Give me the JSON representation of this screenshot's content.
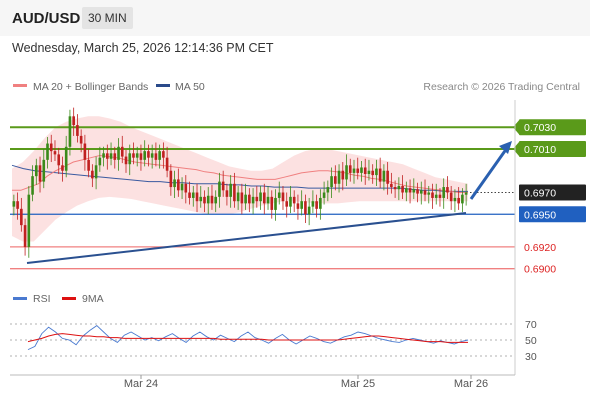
{
  "header": {
    "pair": "AUD/USD",
    "timeframe": "30 MIN",
    "datetime": "Wednesday, March 25, 2026 12:14:36 PM CET"
  },
  "legend": {
    "bollinger": "MA 20 + Bollinger Bands",
    "ma50": "MA 50",
    "credit": "Research © 2026 Trading Central"
  },
  "colors": {
    "resistance": "#5a9a1a",
    "pivot": "#2060c0",
    "support": "#f08080",
    "support_text": "#dd2222",
    "candle_up": "#3a8a1a",
    "candle_down": "#c02020",
    "bands": "#fbdcdc",
    "ma20": "#f08080",
    "ma50": "#3a5aa0",
    "rsi": "#4a7ad0",
    "rsi_ma": "#dd1111"
  },
  "chart_data": [
    {
      "type": "candlestick",
      "title": "AUD/USD",
      "ylim": [
        0.6885,
        0.7055
      ],
      "x_labels": [
        "Mar 24",
        "Mar 25",
        "Mar 26"
      ],
      "price_levels": [
        {
          "label": "0.7030",
          "value": 0.703,
          "kind": "resistance"
        },
        {
          "label": "0.7010",
          "value": 0.701,
          "kind": "resistance"
        },
        {
          "label": "0.6970",
          "value": 0.697,
          "kind": "last"
        },
        {
          "label": "0.6950",
          "value": 0.695,
          "kind": "pivot"
        },
        {
          "label": "0.6920",
          "value": 0.692,
          "kind": "support"
        },
        {
          "label": "0.6900",
          "value": 0.69,
          "kind": "support"
        }
      ],
      "closes": [
        0.6962,
        0.6955,
        0.694,
        0.692,
        0.6968,
        0.6985,
        0.6995,
        0.698,
        0.7,
        0.7015,
        0.7008,
        0.7005,
        0.6995,
        0.699,
        0.7012,
        0.704,
        0.7032,
        0.7022,
        0.7015,
        0.7,
        0.699,
        0.6983,
        0.6995,
        0.7002,
        0.7006,
        0.7001,
        0.7006,
        0.7,
        0.7012,
        0.7003,
        0.6996,
        0.7006,
        0.7002,
        0.7006,
        0.7,
        0.7008,
        0.7002,
        0.7006,
        0.7,
        0.7008,
        0.7002,
        0.699,
        0.6975,
        0.6982,
        0.6972,
        0.6978,
        0.697,
        0.6965,
        0.697,
        0.6962,
        0.6966,
        0.696,
        0.6967,
        0.696,
        0.6966,
        0.698,
        0.6972,
        0.6966,
        0.6978,
        0.6962,
        0.697,
        0.696,
        0.6968,
        0.696,
        0.6966,
        0.6962,
        0.697,
        0.696,
        0.6966,
        0.6954,
        0.6965,
        0.697,
        0.6962,
        0.6957,
        0.6966,
        0.696,
        0.6955,
        0.6962,
        0.695,
        0.6957,
        0.6962,
        0.6955,
        0.6965,
        0.697,
        0.6975,
        0.6985,
        0.6978,
        0.699,
        0.6982,
        0.6995,
        0.6988,
        0.6992,
        0.6988,
        0.6993,
        0.6987,
        0.699,
        0.6986,
        0.6992,
        0.698,
        0.699,
        0.6978,
        0.6975,
        0.6973,
        0.6976,
        0.697,
        0.6974,
        0.697,
        0.6973,
        0.6969,
        0.6972,
        0.6968,
        0.697,
        0.6965,
        0.6968,
        0.6965,
        0.6975,
        0.697,
        0.6962,
        0.6965,
        0.696,
        0.6968,
        0.697
      ],
      "ma20": [
        0.6972,
        0.6972,
        0.6975,
        0.6978,
        0.6985,
        0.699,
        0.6994,
        0.6998,
        0.7,
        0.7002,
        0.7004,
        0.7003,
        0.7002,
        0.7,
        0.6998,
        0.6997,
        0.6996,
        0.6995,
        0.6994,
        0.6993,
        0.6992,
        0.6991,
        0.6989,
        0.6988,
        0.6986,
        0.6985,
        0.6984,
        0.6983,
        0.6982,
        0.6982,
        0.6982,
        0.6984,
        0.6986,
        0.6988,
        0.6989,
        0.699,
        0.699,
        0.6989,
        0.6988,
        0.6986,
        0.6985,
        0.6983,
        0.6982,
        0.698,
        0.6978,
        0.6976,
        0.6975,
        0.6974,
        0.6973,
        0.6972,
        0.6971,
        0.697,
        0.697
      ],
      "bb_upper": [
        0.6992,
        0.6998,
        0.7008,
        0.702,
        0.703,
        0.7035,
        0.7038,
        0.704,
        0.704,
        0.7038,
        0.7035,
        0.703,
        0.7026,
        0.7022,
        0.7018,
        0.7014,
        0.701,
        0.7006,
        0.7002,
        0.6998,
        0.6994,
        0.6992,
        0.699,
        0.699,
        0.6992,
        0.6998,
        0.7004,
        0.7008,
        0.701,
        0.701,
        0.7008,
        0.7006,
        0.7004,
        0.7002,
        0.7,
        0.6998,
        0.6996,
        0.6992,
        0.6988,
        0.6984,
        0.6982,
        0.698,
        0.6978
      ],
      "bb_lower": [
        0.693,
        0.6925,
        0.6925,
        0.6935,
        0.6945,
        0.6952,
        0.6958,
        0.6962,
        0.6965,
        0.6966,
        0.6965,
        0.6964,
        0.6962,
        0.696,
        0.6958,
        0.6956,
        0.6954,
        0.6952,
        0.695,
        0.695,
        0.695,
        0.6952,
        0.6955,
        0.6958,
        0.696,
        0.6962,
        0.6962,
        0.6961,
        0.696,
        0.696,
        0.696,
        0.6961,
        0.6962,
        0.6962,
        0.6962,
        0.6962,
        0.6962,
        0.6962,
        0.6962,
        0.6962,
        0.6962,
        0.6962,
        0.6962
      ],
      "ma50": [
        0.6995,
        0.6992,
        0.699,
        0.6989,
        0.6988,
        0.6987,
        0.6986,
        0.6985,
        0.6984,
        0.6983,
        0.6982,
        0.6981,
        0.698,
        0.698,
        0.6979,
        0.6979,
        0.6978,
        0.6978,
        0.6978,
        0.6977,
        0.6977,
        0.6976,
        0.6976,
        0.6975,
        0.6975,
        0.6975,
        0.6974,
        0.6974,
        0.6974,
        0.6974,
        0.6974,
        0.6974,
        0.6974,
        0.6974,
        0.6974,
        0.6973,
        0.6972,
        0.6972,
        0.6971,
        0.6971,
        0.6971
      ]
    },
    {
      "type": "line",
      "title": "RSI",
      "ylim": [
        15,
        85
      ],
      "yticks": [
        70,
        50,
        30
      ],
      "series": [
        {
          "name": "RSI",
          "values": [
            38,
            42,
            58,
            66,
            60,
            52,
            50,
            44,
            55,
            62,
            68,
            60,
            52,
            47,
            56,
            60,
            55,
            50,
            53,
            49,
            54,
            58,
            52,
            47,
            55,
            60,
            54,
            50,
            56,
            52,
            48,
            55,
            60,
            53,
            50,
            46,
            52,
            57,
            50,
            45,
            50,
            55,
            52,
            48,
            46,
            50,
            54,
            56,
            60,
            58,
            55,
            52,
            50,
            48,
            47,
            50,
            52,
            50,
            48,
            46,
            49,
            47,
            45,
            48,
            50
          ]
        },
        {
          "name": "9MA",
          "values": [
            48,
            50,
            52,
            55,
            57,
            58,
            57,
            56,
            55,
            55,
            54,
            54,
            53,
            53,
            52,
            52,
            52,
            52,
            52,
            52,
            52,
            52,
            52,
            52,
            52,
            52,
            52,
            52,
            51,
            51,
            51,
            51,
            51,
            51,
            51,
            50,
            50,
            50,
            50,
            50,
            50,
            50,
            50,
            50,
            50,
            50,
            51,
            52,
            53,
            54,
            55,
            55,
            54,
            53,
            52,
            51,
            50,
            49,
            48,
            48,
            48,
            47,
            47,
            47,
            47
          ]
        }
      ]
    }
  ]
}
